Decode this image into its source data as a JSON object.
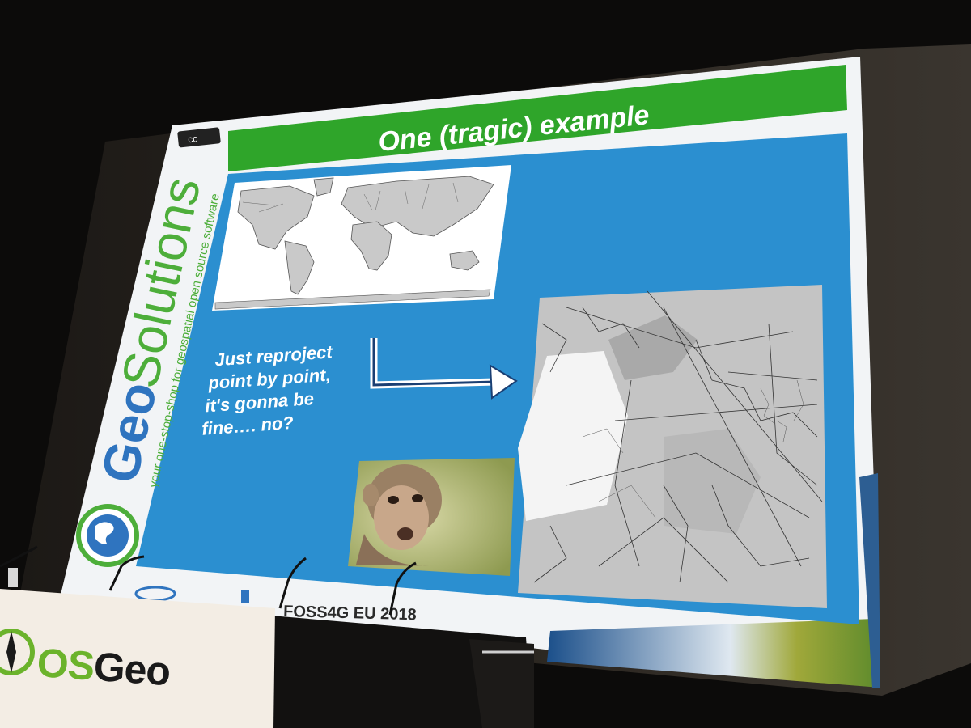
{
  "slide": {
    "title": "One (tragic) example",
    "brand": {
      "geo": "Geo",
      "solutions": "Solutions",
      "tagline": "your one-stop-shop for geospatial open source software"
    },
    "caption_lines": [
      "Just reproject",
      "point by point,",
      "it's gonna be",
      "fine…. no?"
    ],
    "footer": "FOSS4G EU 2018",
    "cc_badge": "cc",
    "colors": {
      "title_bar": "#2fa52a",
      "content_bg": "#2b8fd0",
      "slide_frame": "#f2f4f6",
      "brand_green": "#4dae3a",
      "brand_blue": "#2f74bf",
      "arrow": "#ffffff"
    }
  },
  "banner": {
    "logo_os": "OS",
    "logo_geo": "Geo",
    "logo_icon": "compass-icon"
  },
  "icons": {
    "arrow": "bent-arrow-right-icon",
    "globe": "globe-icon"
  }
}
